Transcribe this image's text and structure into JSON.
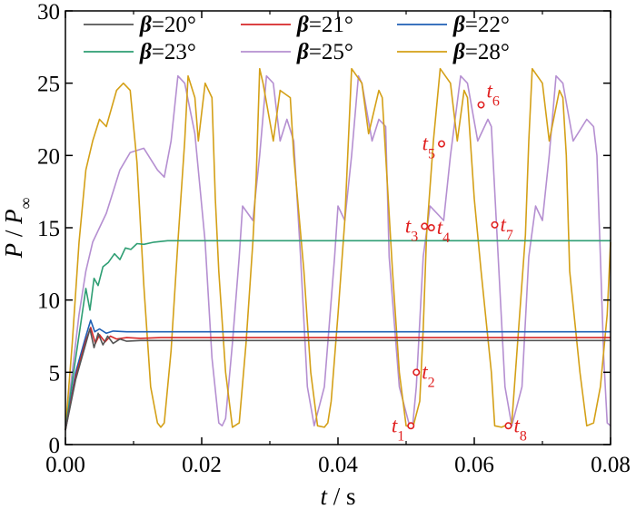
{
  "chart_data": {
    "type": "line",
    "xlabel": {
      "var": "t",
      "sep": " / ",
      "unit": "s"
    },
    "ylabel": {
      "var": "P",
      "sep": " / ",
      "sub_var": "P",
      "sub": "∞"
    },
    "xlim": [
      0.0,
      0.08
    ],
    "ylim": [
      0,
      30
    ],
    "xticks": [
      "0.00",
      "0.02",
      "0.04",
      "0.06",
      "0.08"
    ],
    "yticks": [
      "0",
      "5",
      "10",
      "15",
      "20",
      "25",
      "30"
    ],
    "legend_position": "top",
    "series": [
      {
        "name": "β=20°",
        "color": "#555555",
        "x": [
          0.0,
          0.0015,
          0.003,
          0.0036,
          0.0042,
          0.0048,
          0.0055,
          0.0062,
          0.007,
          0.008,
          0.009,
          0.011,
          0.014,
          0.08
        ],
        "y": [
          1.0,
          4.5,
          7.0,
          8.0,
          6.7,
          7.7,
          6.9,
          7.5,
          7.0,
          7.3,
          7.15,
          7.2,
          7.2,
          7.2
        ]
      },
      {
        "name": "β=21°",
        "color": "#d62728",
        "x": [
          0.0,
          0.0015,
          0.003,
          0.0037,
          0.0044,
          0.005,
          0.0058,
          0.0066,
          0.0075,
          0.009,
          0.011,
          0.014,
          0.08
        ],
        "y": [
          1.0,
          4.7,
          7.2,
          8.1,
          7.0,
          7.6,
          7.1,
          7.5,
          7.3,
          7.4,
          7.35,
          7.4,
          7.4
        ]
      },
      {
        "name": "β=22°",
        "color": "#1f5fb4",
        "x": [
          0.0,
          0.0015,
          0.003,
          0.0037,
          0.0043,
          0.005,
          0.006,
          0.007,
          0.009,
          0.012,
          0.08
        ],
        "y": [
          1.0,
          5.0,
          7.5,
          8.6,
          7.8,
          8.0,
          7.7,
          7.85,
          7.8,
          7.8,
          7.8
        ]
      },
      {
        "name": "β=23°",
        "color": "#2e9e73",
        "x": [
          0.0,
          0.0012,
          0.0022,
          0.003,
          0.0036,
          0.0042,
          0.0048,
          0.0055,
          0.0063,
          0.0072,
          0.008,
          0.0088,
          0.0096,
          0.0105,
          0.0115,
          0.013,
          0.015,
          0.02,
          0.03,
          0.04,
          0.05,
          0.06,
          0.07,
          0.08
        ],
        "y": [
          1.0,
          5.0,
          8.2,
          10.8,
          9.3,
          11.5,
          11.0,
          12.3,
          12.6,
          13.2,
          12.8,
          13.6,
          13.5,
          13.9,
          13.85,
          14.0,
          14.1,
          14.1,
          14.1,
          14.1,
          14.1,
          14.1,
          14.1,
          14.1
        ]
      },
      {
        "name": "β=25°",
        "color": "#b58fd1",
        "x": [
          0.0,
          0.001,
          0.002,
          0.003,
          0.004,
          0.005,
          0.006,
          0.007,
          0.008,
          0.0095,
          0.0115,
          0.0135,
          0.0145,
          0.0155,
          0.0165,
          0.0175,
          0.019,
          0.0205,
          0.0215,
          0.0225,
          0.023,
          0.0235,
          0.0245,
          0.0255,
          0.026,
          0.0275,
          0.0285,
          0.0295,
          0.0305,
          0.0315,
          0.0325,
          0.0335,
          0.0345,
          0.0355,
          0.0365,
          0.038,
          0.0395,
          0.04,
          0.041,
          0.042,
          0.043,
          0.0435,
          0.045,
          0.046,
          0.047,
          0.0475,
          0.049,
          0.0505,
          0.051,
          0.0515,
          0.0525,
          0.0535,
          0.0555,
          0.0565,
          0.058,
          0.059,
          0.0605,
          0.062,
          0.0625,
          0.0635,
          0.0645,
          0.0655,
          0.067,
          0.068,
          0.069,
          0.07,
          0.071,
          0.072,
          0.073,
          0.0745,
          0.0765,
          0.0775,
          0.078,
          0.0785,
          0.079,
          0.0795,
          0.08
        ],
        "y": [
          1.0,
          5.0,
          9.0,
          12.0,
          14.0,
          15.0,
          16.0,
          17.5,
          19.0,
          20.2,
          20.5,
          19.0,
          18.5,
          21.0,
          25.5,
          25.0,
          21.5,
          14.0,
          6.0,
          1.5,
          1.3,
          1.8,
          7.0,
          13.0,
          16.5,
          15.5,
          20.0,
          25.5,
          25.0,
          21.0,
          22.5,
          21.0,
          13.0,
          4.0,
          1.3,
          4.0,
          13.0,
          16.5,
          15.5,
          20.0,
          25.5,
          25.0,
          21.0,
          22.5,
          22.0,
          13.0,
          4.0,
          1.3,
          1.5,
          4.0,
          13.0,
          16.5,
          15.5,
          20.0,
          25.5,
          25.0,
          21.0,
          22.5,
          22.0,
          13.0,
          4.0,
          1.3,
          4.0,
          13.0,
          16.5,
          15.5,
          20.0,
          25.5,
          25.0,
          21.0,
          22.5,
          22.0,
          20.0,
          13.0,
          6.0,
          1.5,
          1.3
        ]
      },
      {
        "name": "β=28°",
        "color": "#d4a017",
        "x": [
          0.0,
          0.001,
          0.002,
          0.003,
          0.004,
          0.005,
          0.006,
          0.0075,
          0.0085,
          0.0095,
          0.0105,
          0.0115,
          0.0125,
          0.0135,
          0.014,
          0.0145,
          0.0155,
          0.0165,
          0.0175,
          0.018,
          0.019,
          0.0195,
          0.0205,
          0.0215,
          0.022,
          0.0225,
          0.0235,
          0.0245,
          0.0255,
          0.0265,
          0.0275,
          0.028,
          0.0285,
          0.029,
          0.0305,
          0.0315,
          0.033,
          0.0335,
          0.035,
          0.036,
          0.037,
          0.038,
          0.0385,
          0.039,
          0.04,
          0.041,
          0.042,
          0.0435,
          0.0445,
          0.046,
          0.0465,
          0.047,
          0.048,
          0.049,
          0.05,
          0.051,
          0.052,
          0.0525,
          0.053,
          0.054,
          0.055,
          0.0565,
          0.0575,
          0.0585,
          0.059,
          0.06,
          0.061,
          0.0625,
          0.063,
          0.064,
          0.0655,
          0.0665,
          0.0675,
          0.068,
          0.0685,
          0.07,
          0.071,
          0.0725,
          0.073,
          0.0735,
          0.074,
          0.0755,
          0.0765,
          0.0775,
          0.0785,
          0.0795,
          0.08
        ],
        "y": [
          1.0,
          7.0,
          14.0,
          19.0,
          21.0,
          22.5,
          22.0,
          24.5,
          25.0,
          24.5,
          19.5,
          11.0,
          4.0,
          1.5,
          1.2,
          1.5,
          6.5,
          14.0,
          21.0,
          25.5,
          24.0,
          21.0,
          25.0,
          24.0,
          17.0,
          12.0,
          5.0,
          1.2,
          1.5,
          7.0,
          14.0,
          18.5,
          26.0,
          25.0,
          21.0,
          24.5,
          24.0,
          20.0,
          12.0,
          5.0,
          1.3,
          1.2,
          1.5,
          3.0,
          9.0,
          15.5,
          26.0,
          25.0,
          21.5,
          24.5,
          24.0,
          20.0,
          12.0,
          5.0,
          1.3,
          1.2,
          3.0,
          8.0,
          14.5,
          21.0,
          26.0,
          25.0,
          21.0,
          24.5,
          24.0,
          17.0,
          12.0,
          5.0,
          1.3,
          1.2,
          1.5,
          8.0,
          14.5,
          21.0,
          26.0,
          25.0,
          21.0,
          24.5,
          24.0,
          20.0,
          12.0,
          5.0,
          1.3,
          1.5,
          4.0,
          9.0,
          14.0
        ]
      }
    ],
    "annotations": [
      {
        "var": "t",
        "sub": "1",
        "x": 0.0507,
        "y": 1.3,
        "label_pos": "left"
      },
      {
        "var": "t",
        "sub": "2",
        "x": 0.0515,
        "y": 5.0,
        "label_pos": "right"
      },
      {
        "var": "t",
        "sub": "3",
        "x": 0.0527,
        "y": 15.1,
        "label_pos": "left"
      },
      {
        "var": "t",
        "sub": "4",
        "x": 0.0537,
        "y": 15.0,
        "label_pos": "right"
      },
      {
        "var": "t",
        "sub": "5",
        "x": 0.0552,
        "y": 20.8,
        "label_pos": "left"
      },
      {
        "var": "t",
        "sub": "6",
        "x": 0.061,
        "y": 23.5,
        "label_pos": "above"
      },
      {
        "var": "t",
        "sub": "7",
        "x": 0.063,
        "y": 15.2,
        "label_pos": "right"
      },
      {
        "var": "t",
        "sub": "8",
        "x": 0.065,
        "y": 1.3,
        "label_pos": "right"
      }
    ],
    "annotation_color": "#e02020"
  }
}
